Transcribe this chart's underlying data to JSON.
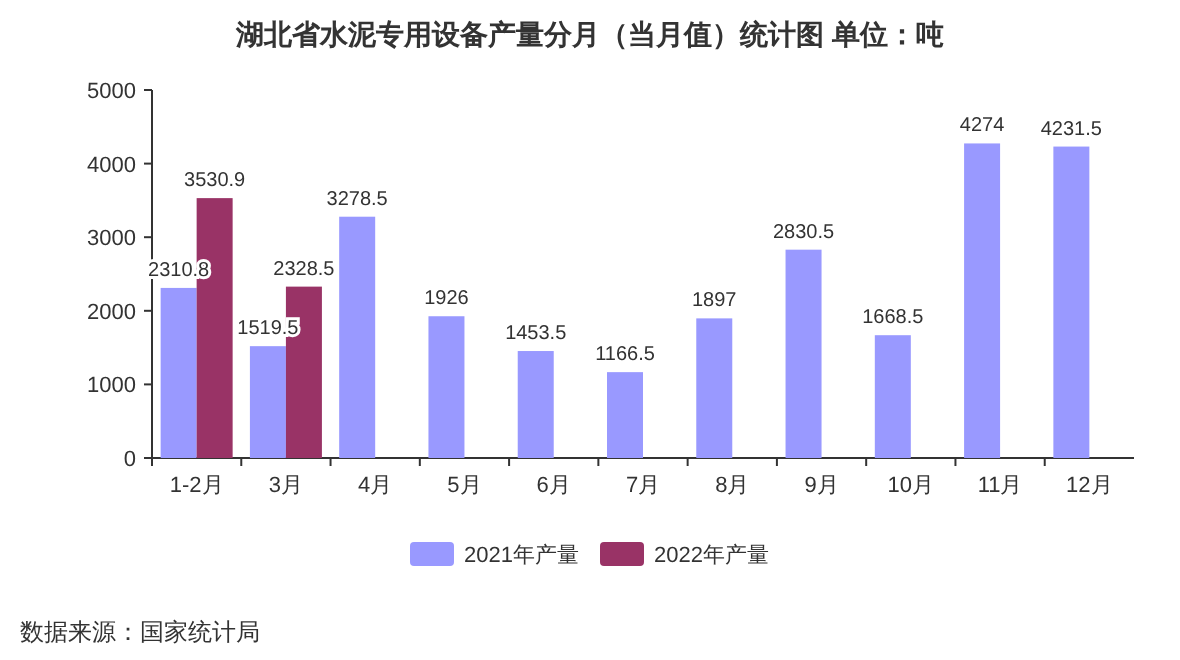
{
  "chart_data": {
    "type": "bar",
    "title": "湖北省水泥专用设备产量分月（当月值）统计图 单位：吨",
    "categories": [
      "1-2月",
      "3月",
      "4月",
      "5月",
      "6月",
      "7月",
      "8月",
      "9月",
      "10月",
      "11月",
      "12月"
    ],
    "series": [
      {
        "name": "2021年产量",
        "color": "#9999ff",
        "values": [
          2310.8,
          1519.5,
          3278.5,
          1926,
          1453.5,
          1166.5,
          1897,
          2830.5,
          1668.5,
          4274,
          4231.5
        ]
      },
      {
        "name": "2022年产量",
        "color": "#993366",
        "values": [
          3530.9,
          2328.5,
          null,
          null,
          null,
          null,
          null,
          null,
          null,
          null,
          null
        ]
      }
    ],
    "ylim": [
      0,
      5000
    ],
    "yticks": [
      0,
      1000,
      2000,
      3000,
      4000,
      5000
    ],
    "data_labels": true,
    "legend": "bottom",
    "grid": false,
    "annotations": [
      "数据来源：国家统计局"
    ]
  }
}
